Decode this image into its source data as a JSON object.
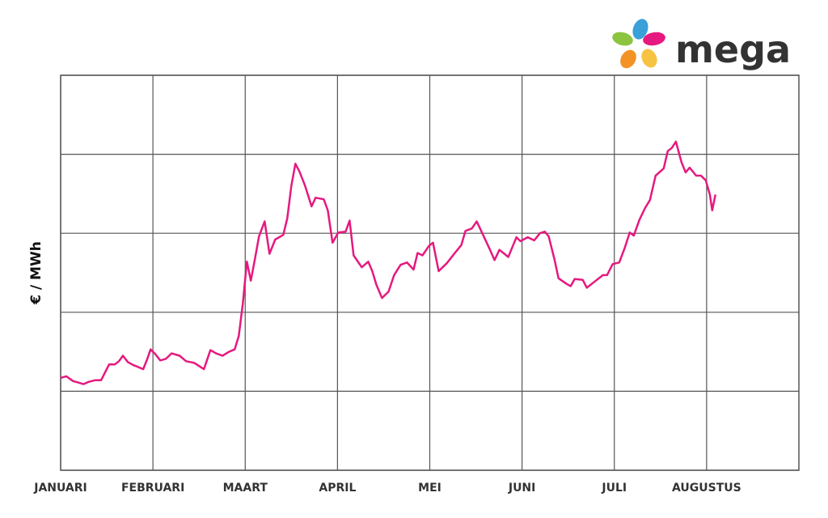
{
  "logo": {
    "text": "mega"
  },
  "chart_data": {
    "type": "line",
    "y_label": "€ / MWh",
    "xlim": [
      0,
      8
    ],
    "xticks": [
      {
        "value": 0,
        "label": "JANUARI"
      },
      {
        "value": 1,
        "label": "FEBRUARI"
      },
      {
        "value": 2,
        "label": "MAART"
      },
      {
        "value": 3,
        "label": "APRIL"
      },
      {
        "value": 4,
        "label": "MEI"
      },
      {
        "value": 5,
        "label": "JUNI"
      },
      {
        "value": 6,
        "label": "JULI"
      },
      {
        "value": 7,
        "label": "AUGUSTUS"
      }
    ],
    "ylim": [
      0,
      5
    ],
    "y_grid": [
      0,
      1,
      2,
      3,
      4,
      5
    ],
    "grid": true,
    "series": [
      {
        "color": "#e5197f",
        "x": [
          0,
          0.061,
          0.132,
          0.193,
          0.246,
          0.307,
          0.377,
          0.439,
          0.482,
          0.526,
          0.588,
          0.632,
          0.675,
          0.728,
          0.789,
          0.833,
          0.895,
          0.939,
          0.974,
          1.026,
          1.079,
          1.14,
          1.202,
          1.289,
          1.36,
          1.447,
          1.553,
          1.623,
          1.684,
          1.754,
          1.825,
          1.886,
          1.93,
          1.974,
          2.018,
          2.061,
          2.105,
          2.149,
          2.211,
          2.263,
          2.325,
          2.412,
          2.456,
          2.5,
          2.544,
          2.588,
          2.649,
          2.719,
          2.763,
          2.851,
          2.895,
          2.947,
          3.009,
          3.088,
          3.132,
          3.175,
          3.263,
          3.333,
          3.377,
          3.421,
          3.482,
          3.553,
          3.614,
          3.684,
          3.754,
          3.825,
          3.868,
          3.921,
          3.991,
          4.035,
          4.096,
          4.184,
          4.272,
          4.342,
          4.386,
          4.456,
          4.509,
          4.561,
          4.649,
          4.702,
          4.754,
          4.798,
          4.851,
          4.939,
          4.982,
          5.061,
          5.132,
          5.193,
          5.246,
          5.289,
          5.351,
          5.395,
          5.482,
          5.526,
          5.57,
          5.658,
          5.702,
          5.789,
          5.877,
          5.921,
          5.982,
          6.053,
          6.114,
          6.167,
          6.211,
          6.272,
          6.333,
          6.386,
          6.447,
          6.535,
          6.579,
          6.623,
          6.667,
          6.728,
          6.772,
          6.816,
          6.886,
          6.939,
          6.991,
          7.035,
          7.061,
          7.096
        ],
        "values": [
          1.17,
          1.19,
          1.13,
          1.11,
          1.09,
          1.12,
          1.14,
          1.14,
          1.24,
          1.34,
          1.34,
          1.38,
          1.45,
          1.37,
          1.33,
          1.31,
          1.28,
          1.41,
          1.53,
          1.47,
          1.39,
          1.41,
          1.48,
          1.45,
          1.38,
          1.36,
          1.28,
          1.52,
          1.48,
          1.45,
          1.5,
          1.53,
          1.7,
          2.11,
          2.64,
          2.4,
          2.67,
          2.96,
          3.15,
          2.74,
          2.92,
          2.98,
          3.19,
          3.6,
          3.88,
          3.78,
          3.6,
          3.34,
          3.45,
          3.43,
          3.29,
          2.88,
          3.01,
          3.02,
          3.16,
          2.72,
          2.57,
          2.64,
          2.52,
          2.35,
          2.18,
          2.26,
          2.47,
          2.6,
          2.63,
          2.54,
          2.75,
          2.72,
          2.84,
          2.88,
          2.52,
          2.62,
          2.75,
          2.85,
          3.03,
          3.06,
          3.15,
          3.02,
          2.8,
          2.66,
          2.79,
          2.75,
          2.7,
          2.95,
          2.9,
          2.95,
          2.91,
          3.0,
          3.02,
          2.96,
          2.67,
          2.43,
          2.36,
          2.33,
          2.42,
          2.41,
          2.31,
          2.39,
          2.47,
          2.47,
          2.61,
          2.63,
          2.82,
          3.01,
          2.97,
          3.17,
          3.32,
          3.42,
          3.73,
          3.82,
          4.04,
          4.08,
          4.16,
          3.9,
          3.77,
          3.83,
          3.73,
          3.73,
          3.67,
          3.49,
          3.29,
          3.49
        ]
      }
    ]
  }
}
